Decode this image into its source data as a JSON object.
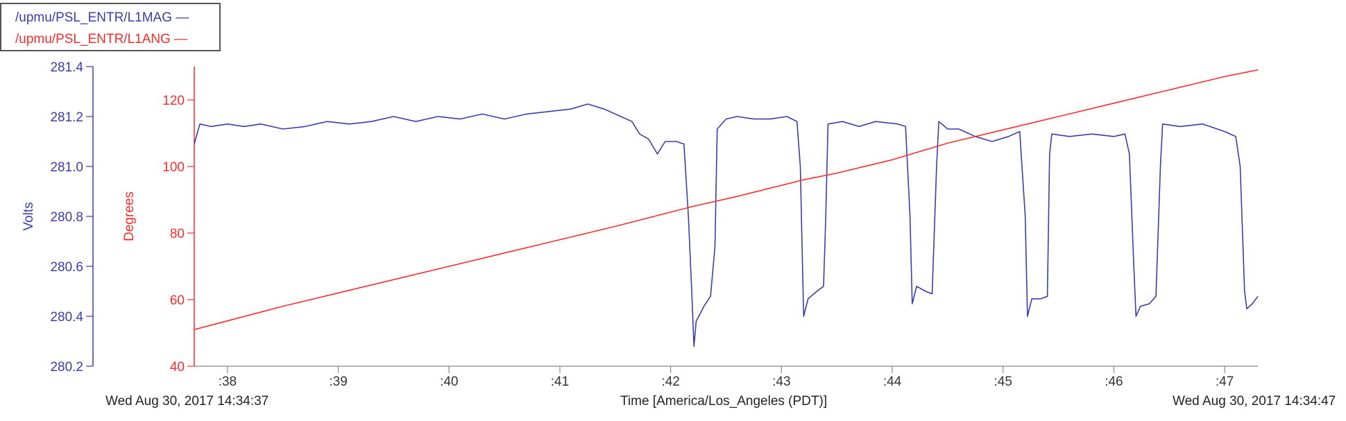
{
  "legend": {
    "mag_label": "/upmu/PSL_ENTR/L1MAG —",
    "ang_label": "/upmu/PSL_ENTR/L1ANG —"
  },
  "footer": {
    "start_time": "Wed Aug 30, 2017 14:34:37",
    "axis_title": "Time [America/Los_Angeles (PDT)]",
    "end_time": "Wed Aug 30, 2017 14:34:47"
  },
  "colors": {
    "mag": "#3b3bb0",
    "ang": "#ff2a2a",
    "axis": "#888888"
  },
  "chart_data": {
    "type": "line",
    "title": "",
    "xlabel": "Time [America/Los_Angeles (PDT)]",
    "x_unit": "seconds after 14:34",
    "xlim": [
      37.7,
      47.3
    ],
    "x_ticks": [
      38,
      39,
      40,
      41,
      42,
      43,
      44,
      45,
      46,
      47
    ],
    "x_tick_labels": [
      ":38",
      ":39",
      ":40",
      ":41",
      ":42",
      ":43",
      ":44",
      ":45",
      ":46",
      ":47"
    ],
    "y_left": {
      "label": "Volts",
      "ylim": [
        280.2,
        281.4
      ],
      "ticks": [
        280.2,
        280.4,
        280.6,
        280.8,
        281.0,
        281.2,
        281.4
      ],
      "tick_labels": [
        "280.2",
        "280.4",
        "280.6",
        "280.8",
        "281.0",
        "281.2",
        "281.4"
      ]
    },
    "y_right": {
      "label": "Degrees",
      "ylim": [
        40,
        130
      ],
      "ticks": [
        40,
        60,
        80,
        100,
        120
      ],
      "tick_labels": [
        "40",
        "60",
        "80",
        "100",
        "120"
      ]
    },
    "series": [
      {
        "name": "/upmu/PSL_ENTR/L1MAG",
        "axis": "left",
        "color": "#3b3bb0",
        "points": [
          [
            37.7,
            281.09
          ],
          [
            37.75,
            281.17
          ],
          [
            37.85,
            281.16
          ],
          [
            38.0,
            281.17
          ],
          [
            38.15,
            281.16
          ],
          [
            38.3,
            281.17
          ],
          [
            38.5,
            281.15
          ],
          [
            38.7,
            281.16
          ],
          [
            38.9,
            281.18
          ],
          [
            39.1,
            281.17
          ],
          [
            39.3,
            281.18
          ],
          [
            39.5,
            281.2
          ],
          [
            39.7,
            281.18
          ],
          [
            39.9,
            281.2
          ],
          [
            40.1,
            281.19
          ],
          [
            40.3,
            281.21
          ],
          [
            40.5,
            281.19
          ],
          [
            40.7,
            281.21
          ],
          [
            40.9,
            281.22
          ],
          [
            41.1,
            281.23
          ],
          [
            41.25,
            281.25
          ],
          [
            41.4,
            281.23
          ],
          [
            41.55,
            281.2
          ],
          [
            41.65,
            281.18
          ],
          [
            41.72,
            281.13
          ],
          [
            41.8,
            281.11
          ],
          [
            41.88,
            281.05
          ],
          [
            41.95,
            281.1
          ],
          [
            42.05,
            281.1
          ],
          [
            42.12,
            281.09
          ],
          [
            42.16,
            280.8
          ],
          [
            42.19,
            280.5
          ],
          [
            42.21,
            280.28
          ],
          [
            42.23,
            280.38
          ],
          [
            42.3,
            280.44
          ],
          [
            42.36,
            280.48
          ],
          [
            42.4,
            280.68
          ],
          [
            42.42,
            281.15
          ],
          [
            42.5,
            281.19
          ],
          [
            42.6,
            281.2
          ],
          [
            42.75,
            281.19
          ],
          [
            42.9,
            281.19
          ],
          [
            43.05,
            281.2
          ],
          [
            43.14,
            281.18
          ],
          [
            43.17,
            281.0
          ],
          [
            43.2,
            280.4
          ],
          [
            43.24,
            280.47
          ],
          [
            43.32,
            280.5
          ],
          [
            43.38,
            280.52
          ],
          [
            43.4,
            280.8
          ],
          [
            43.42,
            281.17
          ],
          [
            43.55,
            281.18
          ],
          [
            43.7,
            281.16
          ],
          [
            43.85,
            281.18
          ],
          [
            44.05,
            281.17
          ],
          [
            44.12,
            281.16
          ],
          [
            44.16,
            280.8
          ],
          [
            44.18,
            280.45
          ],
          [
            44.22,
            280.52
          ],
          [
            44.3,
            280.5
          ],
          [
            44.36,
            280.49
          ],
          [
            44.4,
            281.0
          ],
          [
            44.42,
            281.18
          ],
          [
            44.5,
            281.15
          ],
          [
            44.6,
            281.15
          ],
          [
            44.75,
            281.12
          ],
          [
            44.9,
            281.1
          ],
          [
            45.05,
            281.12
          ],
          [
            45.15,
            281.14
          ],
          [
            45.2,
            280.8
          ],
          [
            45.22,
            280.4
          ],
          [
            45.26,
            280.47
          ],
          [
            45.34,
            280.47
          ],
          [
            45.4,
            280.48
          ],
          [
            45.42,
            281.05
          ],
          [
            45.44,
            281.13
          ],
          [
            45.6,
            281.12
          ],
          [
            45.8,
            281.13
          ],
          [
            46.0,
            281.12
          ],
          [
            46.1,
            281.13
          ],
          [
            46.14,
            281.05
          ],
          [
            46.18,
            280.6
          ],
          [
            46.2,
            280.4
          ],
          [
            46.24,
            280.44
          ],
          [
            46.32,
            280.45
          ],
          [
            46.38,
            280.48
          ],
          [
            46.42,
            281.0
          ],
          [
            46.44,
            281.17
          ],
          [
            46.6,
            281.16
          ],
          [
            46.8,
            281.17
          ],
          [
            47.0,
            281.14
          ],
          [
            47.1,
            281.12
          ],
          [
            47.14,
            281.0
          ],
          [
            47.18,
            280.5
          ],
          [
            47.2,
            280.43
          ],
          [
            47.25,
            280.45
          ],
          [
            47.3,
            280.48
          ]
        ]
      },
      {
        "name": "/upmu/PSL_ENTR/L1ANG",
        "axis": "right",
        "color": "#ff2a2a",
        "points": [
          [
            37.7,
            51
          ],
          [
            38.5,
            58
          ],
          [
            39.5,
            66
          ],
          [
            40.5,
            74
          ],
          [
            41.5,
            82
          ],
          [
            42.2,
            88
          ],
          [
            42.6,
            91
          ],
          [
            43.2,
            96
          ],
          [
            43.5,
            98
          ],
          [
            44.0,
            102
          ],
          [
            44.5,
            107
          ],
          [
            45.0,
            111
          ],
          [
            45.5,
            115
          ],
          [
            46.0,
            119
          ],
          [
            46.5,
            123
          ],
          [
            47.0,
            127
          ],
          [
            47.3,
            129
          ]
        ]
      }
    ]
  }
}
